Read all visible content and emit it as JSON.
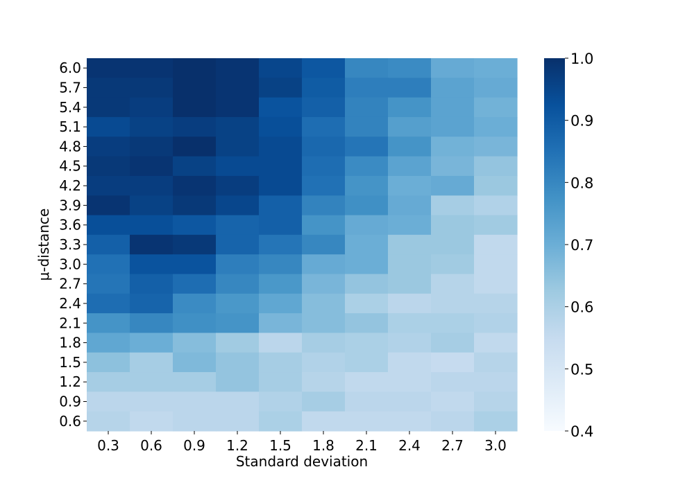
{
  "chart_data": {
    "type": "heatmap",
    "title": "",
    "xlabel": "Standard deviation",
    "ylabel": "μ-distance",
    "x_categories": [
      "0.3",
      "0.6",
      "0.9",
      "1.2",
      "1.5",
      "1.8",
      "2.1",
      "2.4",
      "2.7",
      "3.0"
    ],
    "y_categories": [
      "6.0",
      "5.7",
      "5.4",
      "5.1",
      "4.8",
      "4.5",
      "4.2",
      "3.9",
      "3.6",
      "3.3",
      "3.0",
      "2.7",
      "2.4",
      "2.1",
      "1.8",
      "1.5",
      "1.2",
      "0.9",
      "0.6"
    ],
    "values": [
      [
        0.99,
        0.99,
        1.0,
        0.99,
        0.95,
        0.91,
        0.8,
        0.79,
        0.71,
        0.7
      ],
      [
        0.98,
        0.98,
        1.0,
        0.99,
        0.96,
        0.9,
        0.82,
        0.82,
        0.73,
        0.71
      ],
      [
        0.98,
        0.97,
        1.0,
        0.99,
        0.92,
        0.89,
        0.81,
        0.77,
        0.73,
        0.69
      ],
      [
        0.94,
        0.96,
        0.97,
        0.96,
        0.93,
        0.86,
        0.81,
        0.74,
        0.73,
        0.7
      ],
      [
        0.97,
        0.98,
        1.0,
        0.96,
        0.94,
        0.87,
        0.84,
        0.77,
        0.69,
        0.68
      ],
      [
        0.98,
        0.99,
        0.96,
        0.94,
        0.94,
        0.86,
        0.79,
        0.73,
        0.68,
        0.64
      ],
      [
        0.97,
        0.97,
        0.99,
        0.97,
        0.94,
        0.85,
        0.77,
        0.7,
        0.71,
        0.63
      ],
      [
        0.99,
        0.96,
        0.98,
        0.95,
        0.89,
        0.81,
        0.78,
        0.71,
        0.61,
        0.59
      ],
      [
        0.93,
        0.93,
        0.91,
        0.88,
        0.89,
        0.77,
        0.71,
        0.7,
        0.63,
        0.62
      ],
      [
        0.89,
        0.99,
        0.98,
        0.88,
        0.84,
        0.8,
        0.7,
        0.63,
        0.63,
        0.56
      ],
      [
        0.85,
        0.92,
        0.92,
        0.82,
        0.8,
        0.71,
        0.7,
        0.63,
        0.62,
        0.56
      ],
      [
        0.84,
        0.89,
        0.86,
        0.8,
        0.76,
        0.68,
        0.64,
        0.63,
        0.58,
        0.56
      ],
      [
        0.86,
        0.88,
        0.79,
        0.76,
        0.72,
        0.66,
        0.6,
        0.57,
        0.58,
        0.58
      ],
      [
        0.77,
        0.8,
        0.78,
        0.77,
        0.68,
        0.66,
        0.64,
        0.6,
        0.6,
        0.59
      ],
      [
        0.72,
        0.7,
        0.66,
        0.62,
        0.57,
        0.61,
        0.6,
        0.59,
        0.61,
        0.56
      ],
      [
        0.65,
        0.61,
        0.67,
        0.64,
        0.61,
        0.59,
        0.6,
        0.56,
        0.55,
        0.58
      ],
      [
        0.61,
        0.61,
        0.61,
        0.64,
        0.61,
        0.58,
        0.56,
        0.56,
        0.57,
        0.57
      ],
      [
        0.57,
        0.57,
        0.57,
        0.57,
        0.59,
        0.61,
        0.57,
        0.57,
        0.56,
        0.58
      ],
      [
        0.58,
        0.56,
        0.57,
        0.57,
        0.6,
        0.56,
        0.56,
        0.56,
        0.57,
        0.6
      ]
    ],
    "colormap": "Blues",
    "colorbar": {
      "range": [
        0.4,
        1.0
      ],
      "ticks": [
        "0.4",
        "0.5",
        "0.6",
        "0.7",
        "0.8",
        "0.9",
        "1.0"
      ]
    },
    "grid": false,
    "legend": "colorbar-right"
  }
}
